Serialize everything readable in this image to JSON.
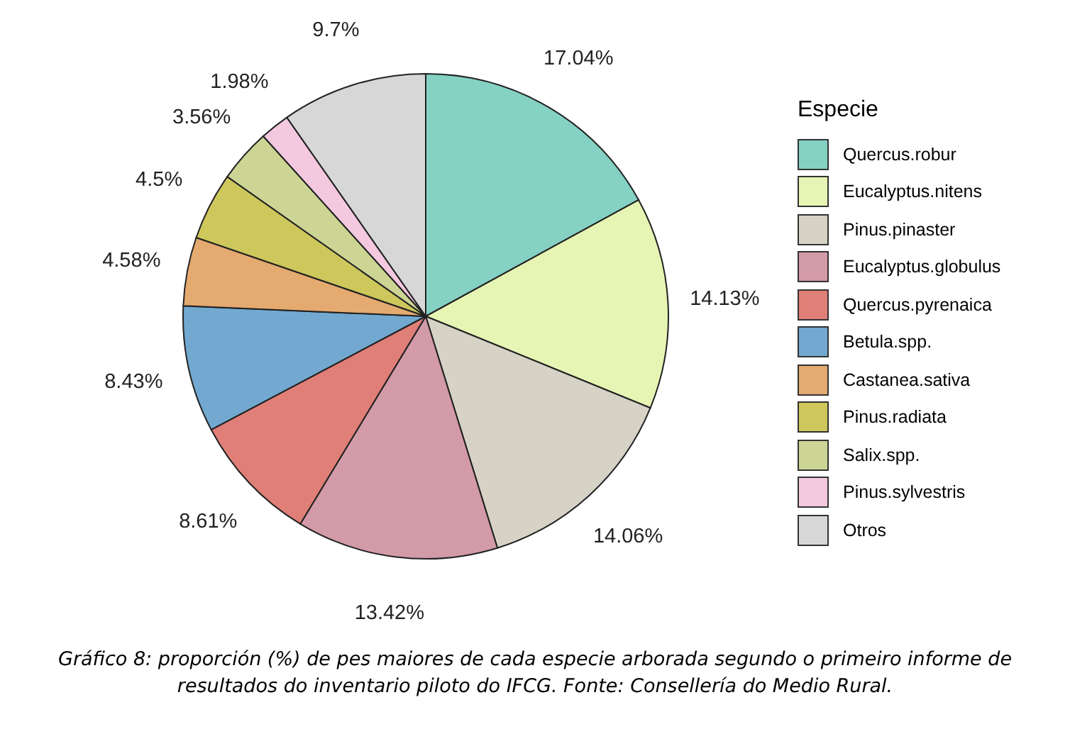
{
  "chart_data": {
    "type": "pie",
    "legend_title": "Especie",
    "legend": "right",
    "categories": [
      "Quercus.robur",
      "Eucalyptus.nitens",
      "Pinus.pinaster",
      "Eucalyptus.globulus",
      "Quercus.pyrenaica",
      "Betula.spp.",
      "Castanea.sativa",
      "Pinus.radiata",
      "Salix.spp.",
      "Pinus.sylvestris",
      "Otros"
    ],
    "values": [
      17.04,
      14.13,
      14.06,
      13.42,
      8.61,
      8.43,
      4.58,
      4.5,
      3.56,
      1.98,
      9.7
    ],
    "value_labels": [
      "17.04%",
      "14.13%",
      "14.06%",
      "13.42%",
      "8.61%",
      "8.43%",
      "4.58%",
      "4.5%",
      "3.56%",
      "1.98%",
      "9.7%"
    ],
    "colors": [
      "#85d1c4",
      "#e6f5b4",
      "#d6d3c6",
      "#d39aa8",
      "#e07f77",
      "#73a9d0",
      "#e4aa70",
      "#cdc75c",
      "#cdd595",
      "#f4c9df",
      "#d7d7d7"
    ],
    "annotations": [
      "Gráfico 8: proporción (%) de pes maiores de cada especie arborada segundo o primeiro informe de resultados do inventario piloto do IFCG. Fonte: Consellería do Medio Rural."
    ]
  }
}
